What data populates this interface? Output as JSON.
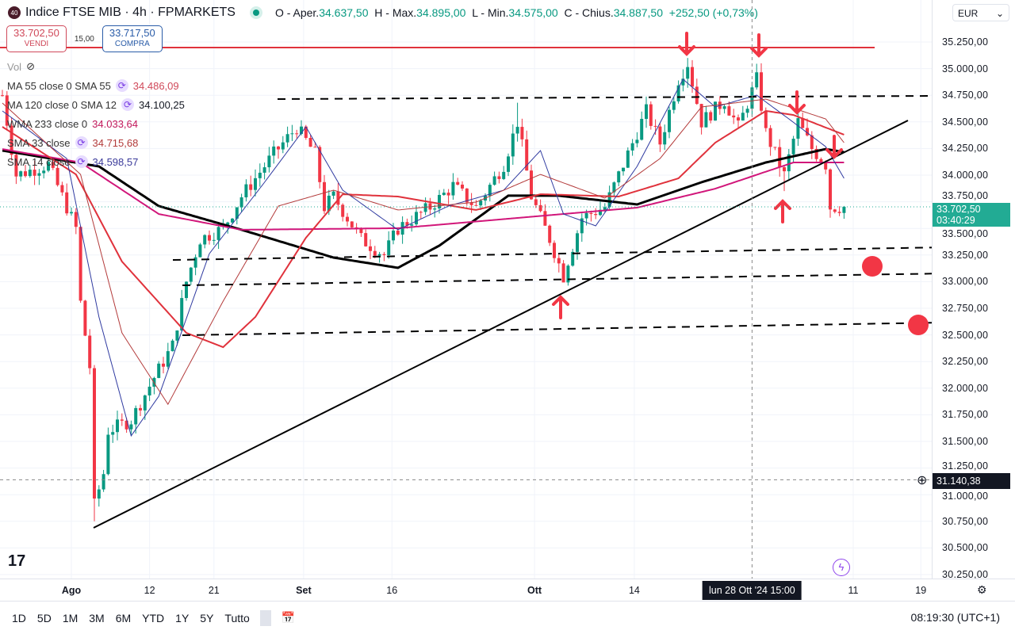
{
  "header": {
    "badge": "40",
    "symbol": "Indice FTSE MIB · 4h · FPMARKETS",
    "open_label": "O - Aper.",
    "open": "34.637,50",
    "high_label": "H - Max.",
    "high": "34.895,00",
    "low_label": "L - Min.",
    "low": "34.575,00",
    "close_label": "C - Chius.",
    "close": "34.887,50",
    "change": "+252,50 (+0,73%)"
  },
  "trade": {
    "sell_price": "33.702,50",
    "sell_label": "VENDI",
    "spread": "15,00",
    "buy_price": "33.717,50",
    "buy_label": "COMPRA"
  },
  "legend": {
    "vol": "Vol",
    "items": [
      {
        "name": "MA 55 close 0 SMA 55",
        "value": "34.486,09",
        "color": "#d0495a",
        "cycle": true
      },
      {
        "name": "MA 120 close 0 SMA 12",
        "value": "34.100,25",
        "color": "#131722",
        "cycle": true
      },
      {
        "name": "WMA 233 close 0",
        "value": "34.033,64",
        "color": "#c2185b",
        "cycle": false
      },
      {
        "name": "SMA 33 close",
        "value": "34.715,68",
        "color": "#b23a3a",
        "cycle": true
      },
      {
        "name": "SMA 14 close",
        "value": "34.598,57",
        "color": "#3a3a9a",
        "cycle": true
      }
    ]
  },
  "axis": {
    "currency": "EUR",
    "ticks": [
      "35.250,00",
      "35.000,00",
      "34.750,00",
      "34.500,00",
      "34.250,00",
      "34.000,00",
      "33.750,00",
      "33.500,00",
      "33.250,00",
      "33.000,00",
      "32.750,00",
      "32.500,00",
      "32.250,00",
      "32.000,00",
      "31.750,00",
      "31.500,00",
      "31.250,00",
      "31.000,00",
      "30.750,00",
      "30.500,00",
      "30.250,00"
    ],
    "last_price": "33.702,50",
    "countdown": "03:40:29",
    "crosshair_price": "31.140,38",
    "crosshair_value": 31140.38,
    "last_value": 33702.5
  },
  "xaxis": {
    "labels": [
      {
        "t": "Ago",
        "bold": true,
        "i": 15
      },
      {
        "t": "12",
        "i": 32
      },
      {
        "t": "21",
        "i": 46
      },
      {
        "t": "Set",
        "bold": true,
        "i": 65.5
      },
      {
        "t": "16",
        "i": 84.7
      },
      {
        "t": "Ott",
        "bold": true,
        "i": 115.7
      },
      {
        "t": "14",
        "i": 137.4
      },
      {
        "t": "11",
        "i": 185
      },
      {
        "t": "19",
        "i": 199.7
      }
    ],
    "crosshair": "lun 28 Ott '24  15:00",
    "crosshair_i": 163
  },
  "bottom": {
    "ranges": [
      "1D",
      "5D",
      "1M",
      "3M",
      "6M",
      "YTD",
      "1Y",
      "5Y",
      "Tutto"
    ],
    "time": "08:19:30 (UTC+1)"
  },
  "colors": {
    "up": "#089981",
    "down": "#f23645",
    "accent": "#22ab94"
  },
  "chart_data": {
    "type": "candlestick",
    "ylim": [
      30250,
      35250
    ],
    "close_path": [
      [
        1,
        34500
      ],
      [
        3,
        34000
      ],
      [
        10,
        34100
      ],
      [
        16,
        33500
      ],
      [
        17,
        32800
      ],
      [
        19,
        32200
      ],
      [
        20,
        30900
      ],
      [
        22,
        31200
      ],
      [
        23,
        31600
      ],
      [
        28,
        31700
      ],
      [
        33,
        32100
      ],
      [
        37,
        32400
      ],
      [
        40,
        33000
      ],
      [
        43,
        33400
      ],
      [
        48,
        33500
      ],
      [
        52,
        33800
      ],
      [
        59,
        34200
      ],
      [
        64,
        34450
      ],
      [
        68,
        34200
      ],
      [
        70,
        33700
      ],
      [
        72,
        33800
      ],
      [
        78,
        33400
      ],
      [
        83,
        33250
      ],
      [
        86,
        33500
      ],
      [
        93,
        33700
      ],
      [
        98,
        33900
      ],
      [
        103,
        33700
      ],
      [
        109,
        34100
      ],
      [
        112,
        34500
      ],
      [
        115,
        33800
      ],
      [
        119,
        33400
      ],
      [
        122,
        33050
      ],
      [
        123,
        33200
      ],
      [
        126,
        33600
      ],
      [
        131,
        33700
      ],
      [
        136,
        34200
      ],
      [
        140,
        34600
      ],
      [
        143,
        34300
      ],
      [
        147,
        34900
      ],
      [
        149,
        35050
      ],
      [
        152,
        34500
      ],
      [
        157,
        34700
      ],
      [
        160,
        34450
      ],
      [
        164,
        34900
      ],
      [
        166,
        34400
      ],
      [
        170,
        34000
      ],
      [
        173,
        34500
      ],
      [
        176,
        34250
      ],
      [
        179,
        34100
      ],
      [
        180,
        33700
      ],
      [
        183,
        33702
      ]
    ],
    "lows": [
      [
        20,
        30750
      ],
      [
        122,
        33020
      ],
      [
        170,
        33850
      ],
      [
        176,
        34150
      ],
      [
        180,
        33600
      ]
    ],
    "highs": [
      [
        149,
        35100
      ],
      [
        165,
        35050
      ],
      [
        112,
        34680
      ]
    ],
    "ma": [
      {
        "name": "MA120",
        "color": "#000000",
        "w": 3,
        "pts": [
          [
            0,
            34231
          ],
          [
            21,
            34082
          ],
          [
            34,
            33710
          ],
          [
            52,
            33487
          ],
          [
            72,
            33226
          ],
          [
            86,
            33130
          ],
          [
            95,
            33338
          ],
          [
            110,
            33807
          ],
          [
            121,
            33807
          ],
          [
            138,
            33725
          ],
          [
            152,
            33933
          ],
          [
            166,
            34119
          ],
          [
            179,
            34245
          ],
          [
            183,
            34216
          ]
        ]
      },
      {
        "name": "WMA233",
        "color": "#d1167a",
        "w": 2,
        "pts": [
          [
            0,
            34245
          ],
          [
            17,
            34119
          ],
          [
            34,
            33635
          ],
          [
            52,
            33487
          ],
          [
            86,
            33502
          ],
          [
            112,
            33598
          ],
          [
            138,
            33695
          ],
          [
            155,
            33873
          ],
          [
            172,
            34119
          ],
          [
            183,
            34119
          ]
        ]
      },
      {
        "name": "SMA33",
        "color": "#e0323c",
        "w": 2,
        "pts": [
          [
            0,
            34454
          ],
          [
            16,
            34007
          ],
          [
            26,
            33189
          ],
          [
            40,
            32519
          ],
          [
            48,
            32385
          ],
          [
            55,
            32668
          ],
          [
            66,
            33412
          ],
          [
            74,
            33821
          ],
          [
            86,
            33799
          ],
          [
            103,
            33673
          ],
          [
            117,
            33821
          ],
          [
            134,
            33799
          ],
          [
            147,
            33970
          ],
          [
            155,
            34305
          ],
          [
            166,
            34603
          ],
          [
            172,
            34565
          ],
          [
            183,
            34380
          ]
        ]
      },
      {
        "name": "SMA14",
        "color": "#2f3aa0",
        "w": 1,
        "pts": [
          [
            0,
            34603
          ],
          [
            14,
            34156
          ],
          [
            21,
            32668
          ],
          [
            28,
            31552
          ],
          [
            34,
            31924
          ],
          [
            45,
            33263
          ],
          [
            57,
            33933
          ],
          [
            66,
            34454
          ],
          [
            74,
            33859
          ],
          [
            86,
            33487
          ],
          [
            97,
            33710
          ],
          [
            109,
            33859
          ],
          [
            117,
            34231
          ],
          [
            122,
            33635
          ],
          [
            129,
            33524
          ],
          [
            138,
            34082
          ],
          [
            148,
            34900
          ],
          [
            155,
            34640
          ],
          [
            164,
            34751
          ],
          [
            171,
            34528
          ],
          [
            179,
            34268
          ],
          [
            183,
            33970
          ]
        ]
      },
      {
        "name": "MA55",
        "color": "#b33a3a",
        "w": 1,
        "pts": [
          [
            0,
            34677
          ],
          [
            17,
            34007
          ],
          [
            26,
            32519
          ],
          [
            36,
            31849
          ],
          [
            48,
            32817
          ],
          [
            60,
            33710
          ],
          [
            72,
            33859
          ],
          [
            86,
            33673
          ],
          [
            103,
            33747
          ],
          [
            117,
            34007
          ],
          [
            131,
            33784
          ],
          [
            143,
            34156
          ],
          [
            152,
            34640
          ],
          [
            166,
            34714
          ],
          [
            179,
            34528
          ],
          [
            183,
            34305
          ]
        ]
      }
    ]
  }
}
